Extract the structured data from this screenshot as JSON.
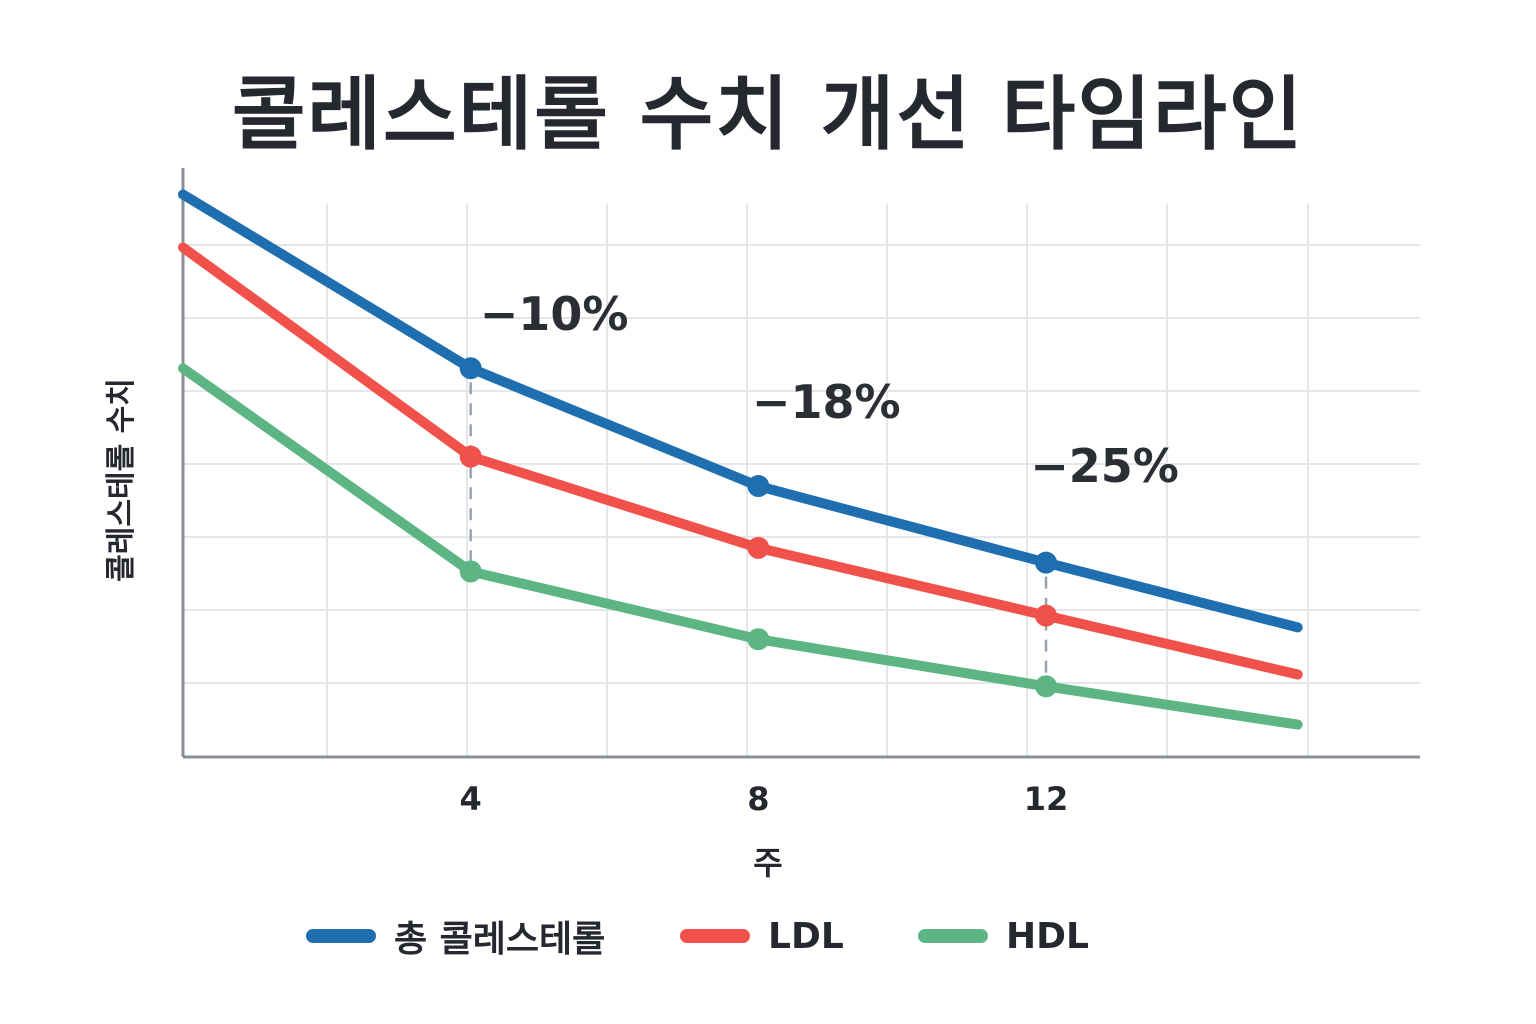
{
  "chart_data": {
    "type": "line",
    "title": "콜레스테롤 수치 개선 타임라인",
    "xlabel": "주",
    "ylabel": "콜레스테롤 수치",
    "x_ticks": [
      "4",
      "8",
      "12"
    ],
    "x": [
      0,
      4,
      8,
      12,
      15.5
    ],
    "xlim": [
      0,
      17.2
    ],
    "ylim": [
      0,
      100
    ],
    "grid": true,
    "legend_position": "bottom",
    "series": [
      {
        "name": "총 콜레스테롤",
        "color": "#1f6fb0",
        "values": [
          95.5,
          66,
          46,
          33,
          22
        ]
      },
      {
        "name": "LDL",
        "color": "#f0514a",
        "values": [
          86.5,
          51,
          35.5,
          24,
          14
        ]
      },
      {
        "name": "HDL",
        "color": "#5db584",
        "values": [
          66,
          31.5,
          20,
          12,
          5.5
        ]
      }
    ],
    "markers": [
      1,
      2,
      3
    ],
    "drop_lines": [
      1,
      3
    ],
    "annotations": [
      {
        "text": "−10%",
        "x": 0.3
      },
      {
        "text": "−18%",
        "x": 0.52
      },
      {
        "text": "−25%",
        "x": 0.745
      }
    ]
  }
}
